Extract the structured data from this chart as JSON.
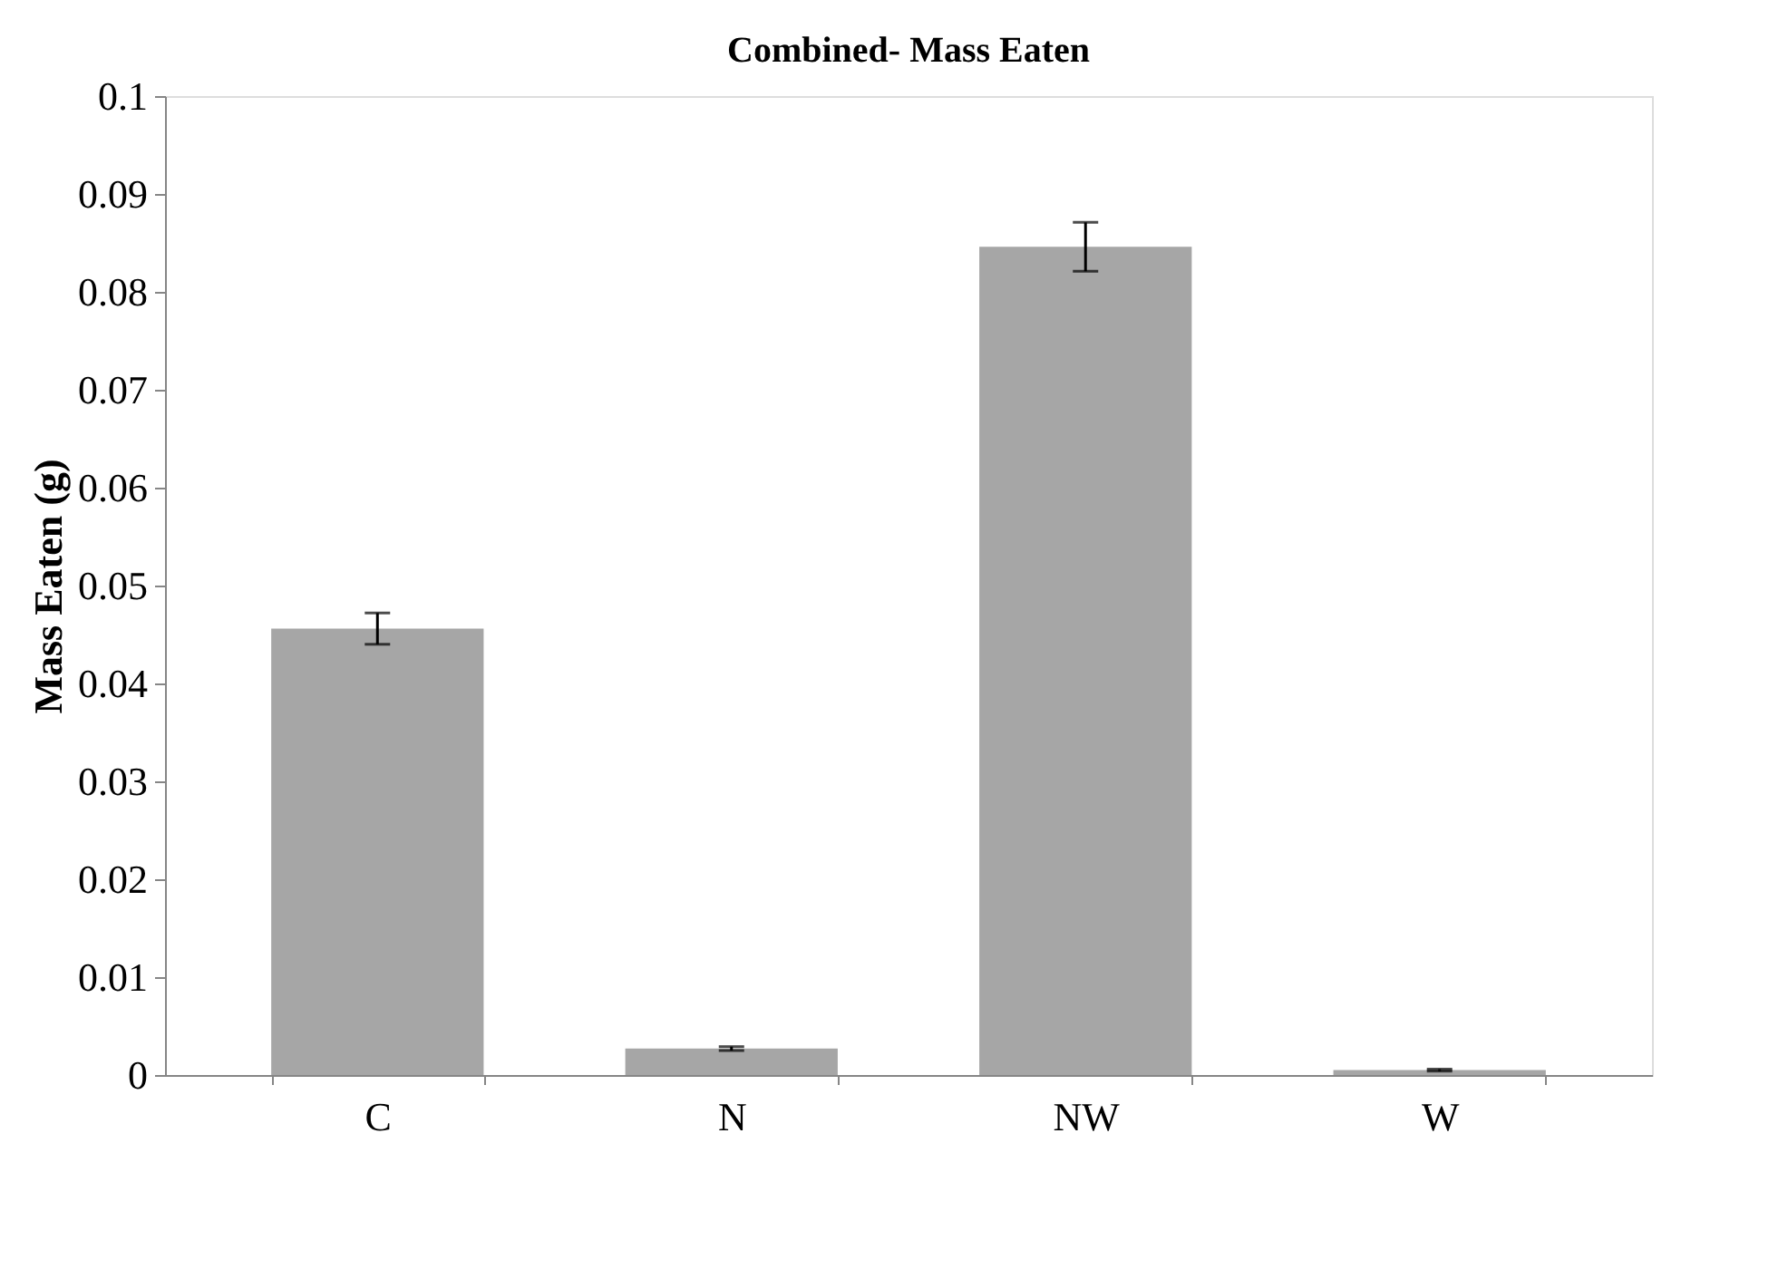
{
  "chart_data": {
    "type": "bar",
    "title": "Combined- Mass Eaten",
    "ylabel": "Mass Eaten (g)",
    "categories": [
      "C",
      "N",
      "NW",
      "W"
    ],
    "values": [
      0.0456,
      0.0027,
      0.0846,
      0.0005
    ],
    "errors": [
      0.0016,
      0.0002,
      0.0025,
      0.0001
    ],
    "color": "#a6a6a6",
    "ylim": [
      0,
      0.1
    ],
    "yticks": [
      0,
      0.01,
      0.02,
      0.03,
      0.04,
      0.05,
      0.06,
      0.07,
      0.08,
      0.09,
      0.1
    ],
    "grid": false
  }
}
